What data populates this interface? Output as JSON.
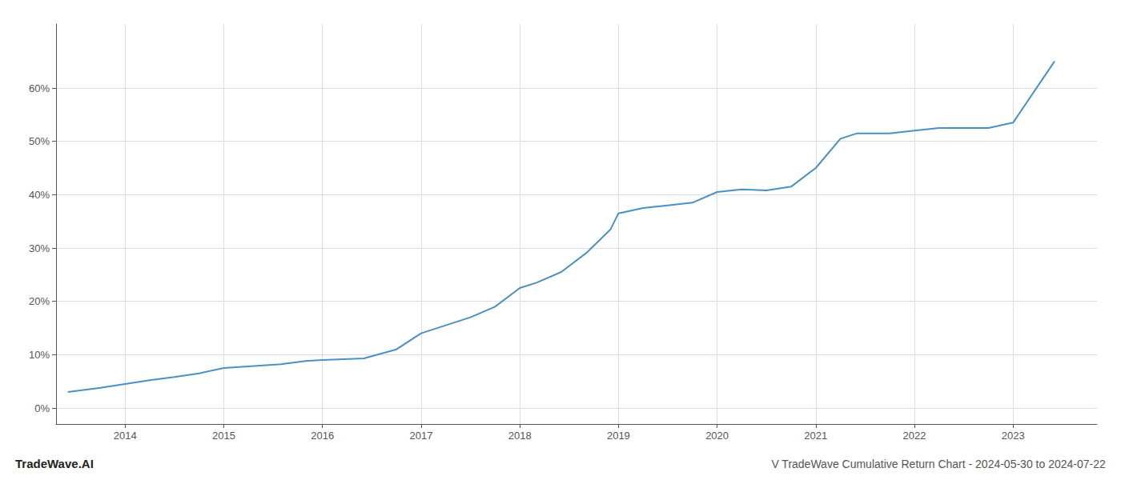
{
  "chart_data": {
    "type": "line",
    "title": "V TradeWave Cumulative Return Chart - 2024-05-30 to 2024-07-22",
    "annotations": [
      {
        "text": "TradeWave.AI"
      }
    ],
    "x": [
      2013.42,
      2013.75,
      2014.0,
      2014.25,
      2014.5,
      2014.75,
      2015.0,
      2015.25,
      2015.58,
      2015.83,
      2016.0,
      2016.42,
      2016.75,
      2017.0,
      2017.25,
      2017.5,
      2017.75,
      2018.0,
      2018.17,
      2018.42,
      2018.67,
      2018.92,
      2019.0,
      2019.25,
      2019.5,
      2019.75,
      2020.0,
      2020.25,
      2020.5,
      2020.75,
      2021.0,
      2021.25,
      2021.42,
      2021.75,
      2022.0,
      2022.25,
      2022.5,
      2022.75,
      2023.0,
      2023.42
    ],
    "values": [
      3.0,
      3.8,
      4.5,
      5.2,
      5.8,
      6.5,
      7.5,
      7.8,
      8.2,
      8.8,
      9.0,
      9.3,
      11.0,
      14.0,
      15.5,
      17.0,
      19.0,
      22.5,
      23.5,
      25.5,
      29.0,
      33.5,
      36.5,
      37.5,
      38.0,
      38.5,
      40.5,
      41.0,
      40.8,
      41.5,
      45.0,
      50.5,
      51.5,
      51.5,
      52.0,
      52.5,
      52.5,
      52.5,
      53.5,
      65.0
    ],
    "color": "#4a90c4",
    "xlim": [
      2013.3,
      2023.85
    ],
    "xticks": [
      2014,
      2015,
      2016,
      2017,
      2018,
      2019,
      2020,
      2021,
      2022,
      2023
    ],
    "ylim": [
      -3,
      72
    ],
    "yticks": [
      {
        "value": 0,
        "label": "0%"
      },
      {
        "value": 10,
        "label": "10%"
      },
      {
        "value": 20,
        "label": "20%"
      },
      {
        "value": 30,
        "label": "30%"
      },
      {
        "value": 40,
        "label": "40%"
      },
      {
        "value": 50,
        "label": "50%"
      },
      {
        "value": 60,
        "label": "60%"
      }
    ],
    "grid": true
  }
}
